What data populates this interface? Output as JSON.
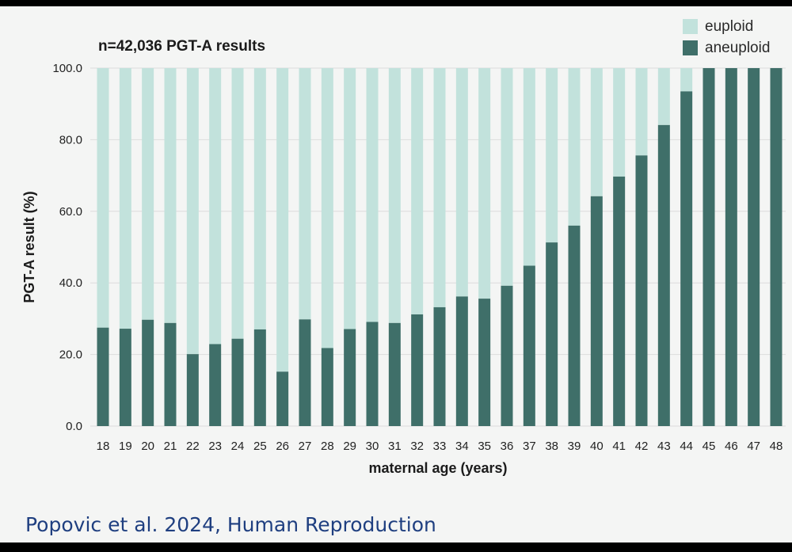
{
  "citation": "Popovic et al. 2024, Human Reproduction",
  "colors": {
    "euploid": "#c2e2dc",
    "aneuploid": "#3f6f69",
    "grid": "#dcdcdc",
    "citation": "#1f3f80"
  },
  "chart_data": {
    "type": "bar",
    "stacked": true,
    "title": "n=42,036 PGT-A results",
    "xlabel": "maternal age (years)",
    "ylabel": "PGT-A result (%)",
    "ylim": [
      0,
      100
    ],
    "yticks": [
      "0.0",
      "20.0",
      "40.0",
      "60.0",
      "80.0",
      "100.0"
    ],
    "legend_position": "top-right",
    "categories": [
      "18",
      "19",
      "20",
      "21",
      "22",
      "23",
      "24",
      "25",
      "26",
      "27",
      "28",
      "29",
      "30",
      "31",
      "32",
      "33",
      "34",
      "35",
      "36",
      "37",
      "38",
      "39",
      "40",
      "41",
      "42",
      "43",
      "44",
      "45",
      "46",
      "47",
      "48"
    ],
    "series": [
      {
        "name": "aneuploid",
        "values": [
          27.5,
          27.2,
          29.7,
          28.8,
          20.1,
          22.9,
          24.4,
          27.0,
          15.2,
          29.8,
          21.8,
          27.1,
          29.1,
          28.8,
          31.2,
          33.2,
          36.2,
          35.6,
          39.2,
          44.8,
          51.3,
          56.0,
          64.2,
          69.7,
          75.6,
          84.1,
          93.5,
          100.0,
          100.0,
          100.0,
          100.0
        ]
      },
      {
        "name": "euploid",
        "values": [
          72.5,
          72.8,
          70.3,
          71.2,
          79.9,
          77.1,
          75.6,
          73.0,
          84.8,
          70.2,
          78.2,
          72.9,
          70.9,
          71.2,
          68.8,
          66.8,
          63.8,
          64.4,
          60.8,
          55.2,
          48.7,
          44.0,
          35.8,
          30.3,
          24.4,
          15.9,
          6.5,
          0.0,
          0.0,
          0.0,
          0.0
        ]
      }
    ]
  }
}
